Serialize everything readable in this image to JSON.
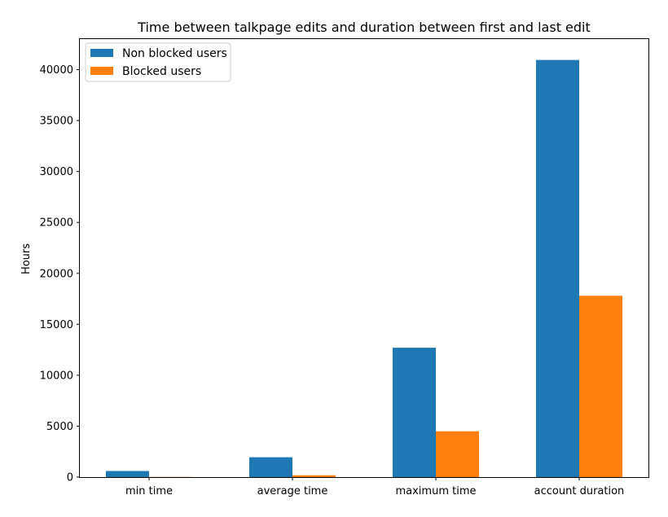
{
  "chart_data": {
    "type": "bar",
    "title": "Time between talkpage edits and duration between first and last edit",
    "xlabel": "",
    "ylabel": "Hours",
    "categories": [
      "min time",
      "average time",
      "maximum time",
      "account duration"
    ],
    "series": [
      {
        "name": "Non blocked users",
        "values": [
          600,
          1950,
          12700,
          40950
        ]
      },
      {
        "name": "Blocked users",
        "values": [
          20,
          180,
          4500,
          17800
        ]
      }
    ],
    "ylim": [
      0,
      43000
    ],
    "yticks": [
      0,
      5000,
      10000,
      15000,
      20000,
      25000,
      30000,
      35000,
      40000
    ],
    "legend": "top-left",
    "grid": false,
    "colors": [
      "#1f77b4",
      "#ff7f0e"
    ]
  }
}
